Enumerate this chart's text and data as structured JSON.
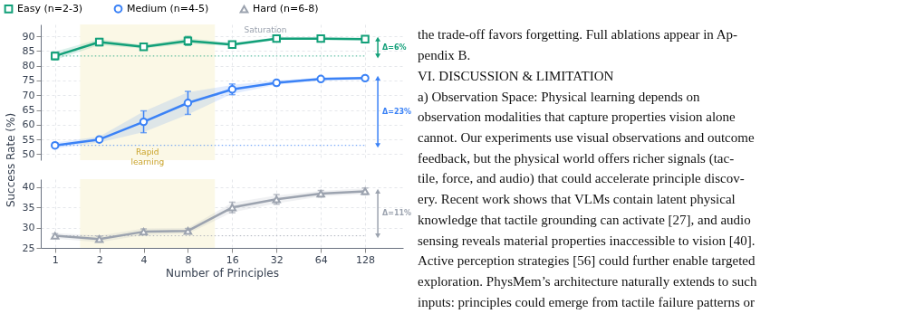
{
  "chart_data": [
    {
      "type": "line",
      "ylabel": "Success Rate (%)",
      "x": [
        1,
        2,
        4,
        8,
        16,
        32,
        64,
        128
      ],
      "xlim": [
        0.8,
        232
      ],
      "xticks": [
        1,
        2,
        4,
        8,
        16,
        32,
        64,
        128
      ],
      "ylim": [
        48,
        94
      ],
      "yticks": [
        50,
        55,
        60,
        65,
        70,
        75,
        80,
        85,
        90
      ],
      "log": "x",
      "grid": true,
      "legend": "top",
      "tick_labels": "y",
      "line_style": "solid",
      "series": [
        {
          "name": "Easy (n=2-3)",
          "color": "#12a079",
          "marker": "square",
          "values": [
            83.3,
            88,
            86.4,
            88.4,
            87.2,
            89.2,
            89.2,
            89
          ],
          "errors": [
            1.3,
            1.2,
            0.8,
            1.5,
            0.7,
            0.5,
            0.5,
            0.5
          ],
          "lower": [
            82,
            87,
            85.8,
            87.5,
            86.6,
            88.8,
            88.8,
            88.6
          ],
          "upper": [
            84.8,
            89,
            87,
            89.3,
            87.8,
            89.6,
            89.6,
            89.4
          ]
        },
        {
          "name": "Medium (n=4-5)",
          "color": "#3b82f6",
          "marker": "circle",
          "values": [
            53,
            55,
            61,
            67.4,
            72,
            74.2,
            75.5,
            75.8
          ],
          "errors": [
            0.8,
            0.6,
            3.7,
            3.9,
            1.8,
            0.9,
            0.5,
            0.5
          ],
          "lower": [
            52,
            54,
            57.5,
            63.5,
            70.5,
            73.5,
            75,
            75.3
          ],
          "upper": [
            54,
            56,
            64.5,
            71,
            73.5,
            75,
            76,
            76.3
          ]
        }
      ],
      "ref_lines": [
        {
          "axis": "y",
          "value": 83.3,
          "color": "#12a079",
          "line_style": "dotted"
        },
        {
          "axis": "y",
          "value": 53,
          "color": "#3b82f6",
          "line_style": "dotted"
        }
      ],
      "bands": [
        {
          "axis": "x",
          "from": 1.48,
          "to": 12.2,
          "label": "Rapid\nlearning",
          "color": "#fbf8e6"
        }
      ],
      "annotations": [
        "Saturation",
        "Δ=6%",
        "Δ=23%"
      ]
    },
    {
      "type": "line",
      "xlabel": "Number of Principles",
      "x": [
        1,
        2,
        4,
        8,
        16,
        32,
        64,
        128
      ],
      "xlim": [
        0.8,
        232
      ],
      "xticks": [
        1,
        2,
        4,
        8,
        16,
        32,
        64,
        128
      ],
      "ylim": [
        25,
        42
      ],
      "yticks": [
        25,
        30,
        35,
        40
      ],
      "log": "x",
      "grid": true,
      "line_style": "solid",
      "series": [
        {
          "name": "Hard (n=6-8)",
          "color": "#9ca3af",
          "marker": "triangle",
          "values": [
            28,
            27.2,
            29,
            29.2,
            35,
            37,
            38.4,
            39
          ],
          "errors": [
            0.5,
            0.7,
            0.7,
            0.6,
            1.3,
            1.2,
            0.8,
            0.8
          ],
          "lower": [
            27.3,
            26.4,
            28.2,
            28.5,
            33.8,
            36,
            37.7,
            38.3
          ],
          "upper": [
            28.7,
            28,
            29.8,
            29.9,
            36.2,
            38,
            39.1,
            39.7
          ]
        }
      ],
      "ref_lines": [
        {
          "axis": "y",
          "value": 28,
          "color": "#9ca3af",
          "line_style": "dotted"
        }
      ],
      "bands": [
        {
          "axis": "x",
          "from": 1.48,
          "to": 12.2,
          "color": "#fbf8e6"
        }
      ],
      "annotations": [
        "Δ=11%"
      ]
    },
    {
      "type": "other",
      "annotations": [
        "the trade-off favors forgetting. Full ablations appear in Ap-",
        "pendix B.",
        "VI. DISCUSSION & LIMITATION",
        "a) Observation Space: Physical learning depends on",
        "observation modalities that capture properties vision alone",
        "cannot. Our experiments use visual observations and outcome",
        "feedback, but the physical world offers richer signals (tac-",
        "tile, force, and audio) that could accelerate principle discov-",
        "ery. Recent work shows that VLMs contain latent physical",
        "knowledge that tactile grounding can activate [27], and audio",
        "sensing reveals material properties inaccessible to vision [40].",
        "Active perception strategies [56] could further enable targeted",
        "exploration. PhysMem’s architecture naturally extends to such",
        "inputs: principles could emerge from tactile failure patterns or"
      ]
    }
  ]
}
